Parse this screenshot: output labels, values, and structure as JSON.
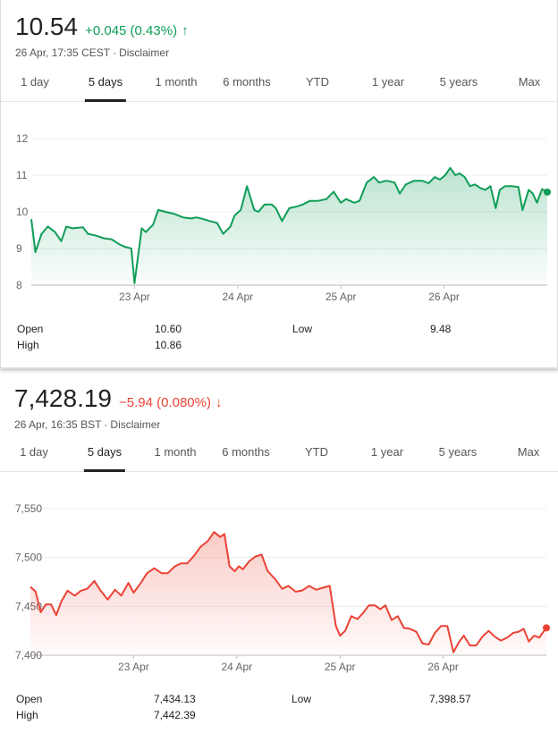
{
  "tabs": [
    "1 day",
    "5 days",
    "1 month",
    "6 months",
    "YTD",
    "1 year",
    "5 years",
    "Max"
  ],
  "disclaimer": "Disclaimer",
  "cards": [
    {
      "price": "10.54",
      "change": "+0.045 (0.43%)",
      "direction": "up",
      "timestamp": "26 Apr, 17:35 CEST",
      "color": "#0f9d58",
      "active_tab": "5 days",
      "stats": [
        {
          "label": "Open",
          "value": "10.60"
        },
        {
          "label": "High",
          "value": "10.86"
        },
        {
          "label": "Low",
          "value": "9.48"
        }
      ]
    },
    {
      "price": "7,428.19",
      "change": "−5.94 (0.080%)",
      "direction": "down",
      "timestamp": "26 Apr, 16:35 BST",
      "color": "#ea4335",
      "active_tab": "5 days",
      "stats": [
        {
          "label": "Open",
          "value": "7,434.13"
        },
        {
          "label": "High",
          "value": "7,442.39"
        },
        {
          "label": "Low",
          "value": "7,398.57"
        }
      ]
    }
  ],
  "chart_data": [
    {
      "type": "area",
      "ylim": [
        8,
        12
      ],
      "yticks": [
        "8",
        "9",
        "10",
        "11",
        "12"
      ],
      "ytick_values": [
        8,
        9,
        10,
        11,
        12
      ],
      "xlim": [
        0,
        5
      ],
      "xticks": [
        "23 Apr",
        "24 Apr",
        "25 Apr",
        "26 Apr"
      ],
      "xtick_values": [
        1,
        2,
        3,
        4
      ],
      "grid": true,
      "line_color": "#0f9d58",
      "end_marker": true,
      "series": [
        {
          "x": [
            0,
            0.04,
            0.1,
            0.16,
            0.23,
            0.29,
            0.34,
            0.4,
            0.5,
            0.55,
            0.63,
            0.7,
            0.78,
            0.85,
            0.9,
            0.97,
            1.0,
            1.07,
            1.11,
            1.18,
            1.23,
            1.3,
            1.38,
            1.47,
            1.55,
            1.6,
            1.67,
            1.73,
            1.8,
            1.86,
            1.93,
            1.97,
            2.03,
            2.09,
            2.16,
            2.2,
            2.26,
            2.33,
            2.37,
            2.43,
            2.5,
            2.58,
            2.63,
            2.7,
            2.78,
            2.86,
            2.93,
            3.0,
            3.05,
            3.13,
            3.18,
            3.25,
            3.32,
            3.37,
            3.44,
            3.52,
            3.57,
            3.63,
            3.71,
            3.79,
            3.85,
            3.91,
            3.96,
            4.01,
            4.06,
            4.11,
            4.15,
            4.2,
            4.25,
            4.3,
            4.35,
            4.4,
            4.45,
            4.5,
            4.54,
            4.59,
            4.65,
            4.72,
            4.76,
            4.82,
            4.86,
            4.9,
            4.95,
            5.0
          ],
          "y": [
            9.8,
            8.9,
            9.4,
            9.6,
            9.45,
            9.2,
            9.6,
            9.55,
            9.58,
            9.4,
            9.35,
            9.28,
            9.25,
            9.12,
            9.05,
            9.0,
            8.05,
            9.55,
            9.45,
            9.65,
            10.05,
            10.0,
            9.95,
            9.85,
            9.82,
            9.85,
            9.8,
            9.75,
            9.7,
            9.4,
            9.6,
            9.9,
            10.05,
            10.7,
            10.05,
            10.0,
            10.2,
            10.2,
            10.1,
            9.75,
            10.1,
            10.15,
            10.2,
            10.3,
            10.3,
            10.35,
            10.55,
            10.25,
            10.35,
            10.25,
            10.3,
            10.8,
            10.95,
            10.8,
            10.85,
            10.8,
            10.5,
            10.75,
            10.85,
            10.85,
            10.78,
            10.95,
            10.88,
            11.0,
            11.2,
            11.0,
            11.05,
            10.95,
            10.7,
            10.75,
            10.65,
            10.6,
            10.7,
            10.1,
            10.6,
            10.7,
            10.7,
            10.68,
            10.05,
            10.6,
            10.5,
            10.25,
            10.62,
            10.54
          ]
        }
      ]
    },
    {
      "type": "area",
      "ylim": [
        7400,
        7550
      ],
      "yticks": [
        "7,400",
        "7,450",
        "7,500",
        "7,550"
      ],
      "ytick_values": [
        7400,
        7450,
        7500,
        7550
      ],
      "xlim": [
        0,
        5
      ],
      "xticks": [
        "23 Apr",
        "24 Apr",
        "25 Apr",
        "26 Apr"
      ],
      "xtick_values": [
        1,
        2,
        3,
        4
      ],
      "grid": true,
      "line_color": "#ea4335",
      "end_marker": true,
      "series": [
        {
          "x": [
            0,
            0.05,
            0.1,
            0.15,
            0.2,
            0.25,
            0.3,
            0.36,
            0.43,
            0.49,
            0.55,
            0.62,
            0.68,
            0.75,
            0.82,
            0.88,
            0.95,
            1.0,
            1.07,
            1.13,
            1.2,
            1.27,
            1.33,
            1.4,
            1.46,
            1.52,
            1.58,
            1.65,
            1.72,
            1.78,
            1.84,
            1.88,
            1.93,
            1.98,
            2.02,
            2.06,
            2.12,
            2.18,
            2.24,
            2.3,
            2.37,
            2.44,
            2.5,
            2.57,
            2.63,
            2.7,
            2.77,
            2.83,
            2.9,
            2.96,
            3.0,
            3.05,
            3.11,
            3.17,
            3.23,
            3.28,
            3.34,
            3.39,
            3.44,
            3.5,
            3.56,
            3.62,
            3.68,
            3.74,
            3.8,
            3.86,
            3.92,
            3.98,
            4.04,
            4.1,
            4.15,
            4.2,
            4.26,
            4.32,
            4.38,
            4.44,
            4.5,
            4.56,
            4.62,
            4.68,
            4.73,
            4.78,
            4.83,
            4.88,
            4.93,
            5.0
          ],
          "y": [
            7470,
            7465,
            7444,
            7452,
            7452,
            7441,
            7455,
            7466,
            7461,
            7466,
            7468,
            7476,
            7466,
            7457,
            7467,
            7461,
            7474,
            7464,
            7474,
            7484,
            7489,
            7484,
            7484,
            7491,
            7494,
            7494,
            7501,
            7511,
            7517,
            7526,
            7521,
            7524,
            7491,
            7486,
            7491,
            7488,
            7496,
            7501,
            7503,
            7486,
            7478,
            7468,
            7471,
            7465,
            7466,
            7471,
            7467,
            7469,
            7471,
            7430,
            7420,
            7425,
            7440,
            7437,
            7444,
            7451,
            7451,
            7447,
            7451,
            7436,
            7440,
            7428,
            7427,
            7424,
            7412,
            7411,
            7423,
            7430,
            7430,
            7403,
            7413,
            7420,
            7410,
            7410,
            7419,
            7425,
            7419,
            7415,
            7418,
            7423,
            7424,
            7427,
            7414,
            7420,
            7418,
            7428
          ]
        }
      ]
    }
  ]
}
